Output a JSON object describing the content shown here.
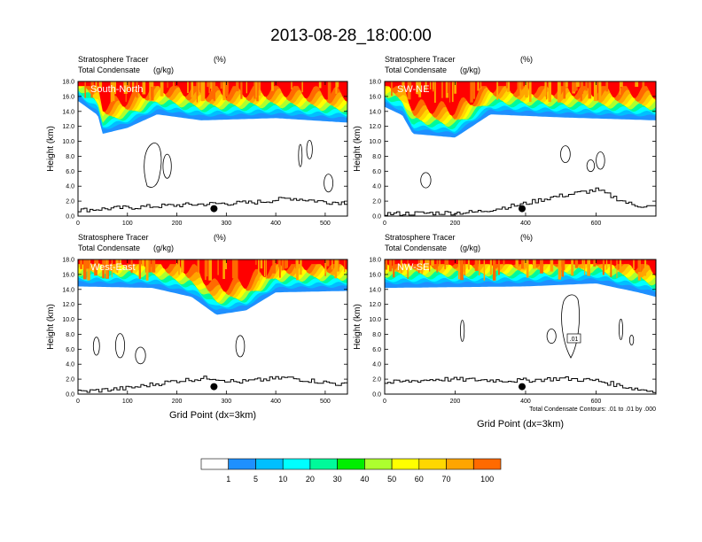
{
  "figure": {
    "title": "2013-08-28_18:00:00",
    "left_header": "Stratosphere Tracer",
    "right_header": "(%)",
    "left_subheader": "Total Condensate",
    "right_subheader": "(g/kg)",
    "xlabel": "Grid Point (dx=3km)",
    "ylabel": "Height (km)",
    "contour_note": "Total Condensate Contours: .01 to .01 by .000",
    "contour_label": ".01"
  },
  "colorbar": {
    "levels": [
      "1",
      "5",
      "10",
      "20",
      "30",
      "40",
      "50",
      "60",
      "70",
      "100"
    ],
    "colors": [
      "#ffffff",
      "#1e90ff",
      "#00bfff",
      "#00ffff",
      "#00fa9a",
      "#00ee00",
      "#adff2f",
      "#ffff00",
      "#ffd700",
      "#ffa500",
      "#ff6a00",
      "#ff0000"
    ]
  },
  "chart_data": [
    {
      "type": "heatmap",
      "panel": "South-North",
      "xlim": [
        0,
        545
      ],
      "x_ticks": [
        "0",
        "100",
        "200",
        "300",
        "400",
        "500"
      ],
      "ylim": [
        0,
        18
      ],
      "y_ticks": [
        "0.0",
        "2.0",
        "4.0",
        "6.0",
        "8.0",
        "10.0",
        "12.0",
        "14.0",
        "16.0",
        "18.0"
      ],
      "marker": {
        "x": 275,
        "y": 1.0
      },
      "tracer_base_km": [
        {
          "x": 0,
          "y": 15.4
        },
        {
          "x": 40,
          "y": 13.5
        },
        {
          "x": 50,
          "y": 11.0
        },
        {
          "x": 100,
          "y": 11.8
        },
        {
          "x": 160,
          "y": 13.6
        },
        {
          "x": 250,
          "y": 12.8
        },
        {
          "x": 400,
          "y": 13.1
        },
        {
          "x": 545,
          "y": 12.5
        }
      ],
      "terrain_km": [
        {
          "x": 0,
          "y": 0.8
        },
        {
          "x": 60,
          "y": 1.0
        },
        {
          "x": 150,
          "y": 1.3
        },
        {
          "x": 250,
          "y": 1.6
        },
        {
          "x": 350,
          "y": 1.8
        },
        {
          "x": 430,
          "y": 2.4
        },
        {
          "x": 500,
          "y": 1.9
        },
        {
          "x": 545,
          "y": 1.8
        }
      ]
    },
    {
      "type": "heatmap",
      "panel": "SW-NE",
      "xlim": [
        0,
        770
      ],
      "x_ticks": [
        "0",
        "200",
        "400",
        "600"
      ],
      "ylim": [
        0,
        18
      ],
      "y_ticks": [
        "0.0",
        "2.0",
        "4.0",
        "6.0",
        "8.0",
        "10.0",
        "12.0",
        "14.0",
        "16.0",
        "18.0"
      ],
      "marker": {
        "x": 390,
        "y": 1.0
      },
      "tracer_base_km": [
        {
          "x": 0,
          "y": 14.6
        },
        {
          "x": 50,
          "y": 13.5
        },
        {
          "x": 80,
          "y": 11.0
        },
        {
          "x": 200,
          "y": 10.5
        },
        {
          "x": 300,
          "y": 13.6
        },
        {
          "x": 500,
          "y": 13.2
        },
        {
          "x": 770,
          "y": 12.8
        }
      ],
      "terrain_km": [
        {
          "x": 0,
          "y": 0.3
        },
        {
          "x": 250,
          "y": 0.5
        },
        {
          "x": 380,
          "y": 1.5
        },
        {
          "x": 470,
          "y": 2.5
        },
        {
          "x": 600,
          "y": 3.5
        },
        {
          "x": 700,
          "y": 1.5
        },
        {
          "x": 770,
          "y": 1.2
        }
      ]
    },
    {
      "type": "heatmap",
      "panel": "West-East",
      "xlim": [
        0,
        545
      ],
      "x_ticks": [
        "0",
        "100",
        "200",
        "300",
        "400",
        "500"
      ],
      "ylim": [
        0,
        18
      ],
      "y_ticks": [
        "0.0",
        "2.0",
        "4.0",
        "6.0",
        "8.0",
        "10.0",
        "12.0",
        "14.0",
        "16.0",
        "18.0"
      ],
      "marker": {
        "x": 275,
        "y": 1.0
      },
      "tracer_base_km": [
        {
          "x": 0,
          "y": 14.4
        },
        {
          "x": 150,
          "y": 14.2
        },
        {
          "x": 230,
          "y": 13.0
        },
        {
          "x": 280,
          "y": 10.6
        },
        {
          "x": 340,
          "y": 11.2
        },
        {
          "x": 400,
          "y": 13.6
        },
        {
          "x": 545,
          "y": 13.8
        }
      ],
      "terrain_km": [
        {
          "x": 0,
          "y": 0.3
        },
        {
          "x": 100,
          "y": 0.8
        },
        {
          "x": 200,
          "y": 1.8
        },
        {
          "x": 270,
          "y": 2.2
        },
        {
          "x": 320,
          "y": 1.6
        },
        {
          "x": 420,
          "y": 2.2
        },
        {
          "x": 545,
          "y": 1.2
        }
      ]
    },
    {
      "type": "heatmap",
      "panel": "NW-SE",
      "xlim": [
        0,
        770
      ],
      "x_ticks": [
        "0",
        "200",
        "400",
        "600"
      ],
      "ylim": [
        0,
        18
      ],
      "y_ticks": [
        "0.0",
        "2.0",
        "4.0",
        "6.0",
        "8.0",
        "10.0",
        "12.0",
        "14.0",
        "16.0",
        "18.0"
      ],
      "marker": {
        "x": 390,
        "y": 1.0
      },
      "tracer_base_km": [
        {
          "x": 0,
          "y": 14.2
        },
        {
          "x": 400,
          "y": 14.4
        },
        {
          "x": 600,
          "y": 14.8
        },
        {
          "x": 720,
          "y": 13.6
        },
        {
          "x": 770,
          "y": 13.0
        }
      ],
      "terrain_km": [
        {
          "x": 0,
          "y": 1.5
        },
        {
          "x": 150,
          "y": 2.0
        },
        {
          "x": 380,
          "y": 1.8
        },
        {
          "x": 500,
          "y": 2.1
        },
        {
          "x": 600,
          "y": 1.8
        },
        {
          "x": 700,
          "y": 0.8
        },
        {
          "x": 770,
          "y": 0.3
        }
      ]
    }
  ]
}
